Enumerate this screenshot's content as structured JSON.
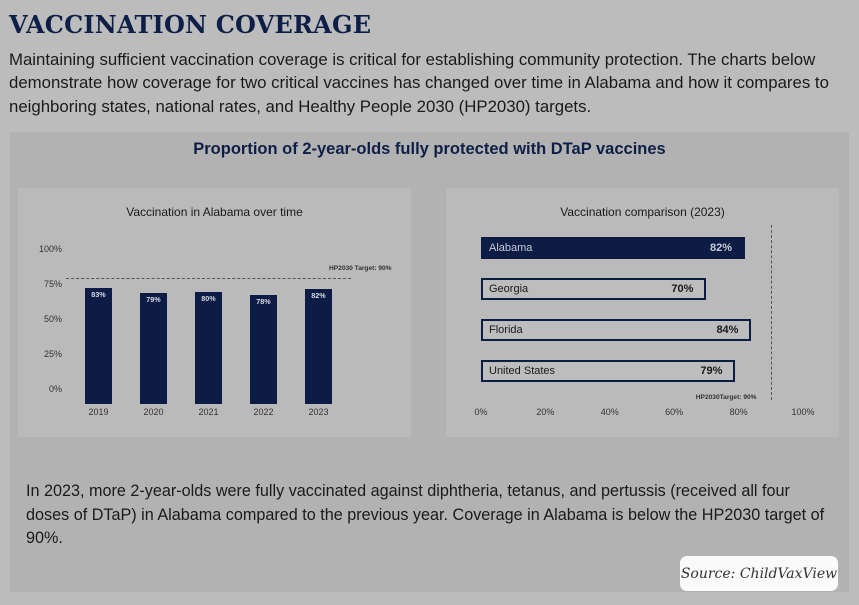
{
  "title": "VACCINATION COVERAGE",
  "intro": "Maintaining sufficient vaccination coverage is critical for establishing community protection. The charts below demonstrate how coverage for two critical vaccines has changed over time in Alabama and how it compares to neighboring states, national rates, and Healthy People 2030 (HP2030) targets.",
  "panel_title": "Proportion of 2-year-olds fully protected with DTaP vaccines",
  "chart_data": [
    {
      "type": "bar",
      "title": "Vaccination in Alabama over time",
      "categories": [
        "2019",
        "2020",
        "2021",
        "2022",
        "2023"
      ],
      "values": [
        83,
        79,
        80,
        78,
        82
      ],
      "value_labels": [
        "83%",
        "79%",
        "80%",
        "78%",
        "82%"
      ],
      "y_ticks": [
        "0%",
        "25%",
        "50%",
        "75%",
        "100%"
      ],
      "ylim": [
        0,
        100
      ],
      "target_value": 90,
      "target_label": "HP2030 Target: 90%"
    },
    {
      "type": "bar",
      "orientation": "horizontal",
      "title": "Vaccination comparison (2023)",
      "categories": [
        "Alabama",
        "Georgia",
        "Florida",
        "United States"
      ],
      "values": [
        82,
        70,
        84,
        79
      ],
      "value_labels": [
        "82%",
        "70%",
        "84%",
        "79%"
      ],
      "highlight": "Alabama",
      "x_ticks": [
        "0%",
        "20%",
        "40%",
        "60%",
        "80%",
        "100%"
      ],
      "xlim": [
        0,
        100
      ],
      "target_value": 90,
      "target_label": "HP2030Target: 90%"
    }
  ],
  "footer": "In 2023, more 2-year-olds were fully vaccinated against diphtheria, tetanus, and pertussis (received all four doses of DTaP) in Alabama compared to the previous year. Coverage in Alabama is below the HP2030 target of 90%.",
  "source": "Source: ChildVaxView"
}
